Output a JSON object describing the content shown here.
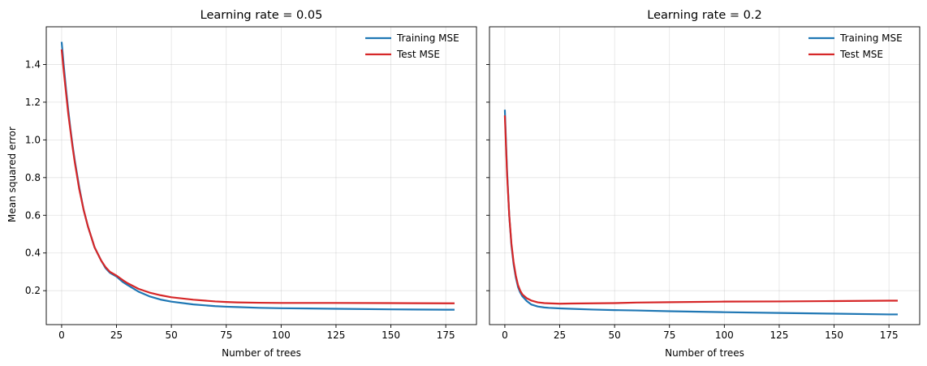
{
  "figure": {
    "shared_ylabel": "Mean squared error"
  },
  "chart_data": [
    {
      "type": "line",
      "title": "Learning rate = 0.05",
      "xlabel": "Number of trees",
      "ylabel": "Mean squared error",
      "xlim": [
        -7,
        189
      ],
      "ylim": [
        0.02,
        1.6
      ],
      "xticks": [
        0,
        25,
        50,
        75,
        100,
        125,
        150,
        175
      ],
      "yticks": [
        0.2,
        0.4,
        0.6,
        0.8,
        1.0,
        1.2,
        1.4
      ],
      "grid": true,
      "legend_position": "top-right",
      "series": [
        {
          "name": "Training MSE",
          "color": "#1f77b4",
          "x": [
            0,
            1,
            2,
            3,
            4,
            5,
            6,
            8,
            10,
            12,
            15,
            18,
            20,
            22,
            25,
            28,
            30,
            35,
            40,
            45,
            50,
            60,
            70,
            75,
            80,
            90,
            100,
            125,
            150,
            175,
            179
          ],
          "y": [
            1.52,
            1.39,
            1.27,
            1.16,
            1.06,
            0.97,
            0.89,
            0.75,
            0.63,
            0.54,
            0.43,
            0.36,
            0.32,
            0.295,
            0.275,
            0.245,
            0.23,
            0.195,
            0.17,
            0.153,
            0.142,
            0.127,
            0.118,
            0.115,
            0.113,
            0.109,
            0.107,
            0.104,
            0.101,
            0.099,
            0.099
          ]
        },
        {
          "name": "Test MSE",
          "color": "#d62728",
          "x": [
            0,
            1,
            2,
            3,
            4,
            5,
            6,
            8,
            10,
            12,
            15,
            18,
            20,
            22,
            25,
            28,
            30,
            35,
            40,
            45,
            50,
            60,
            70,
            75,
            80,
            90,
            100,
            125,
            150,
            175,
            179
          ],
          "y": [
            1.48,
            1.36,
            1.25,
            1.14,
            1.05,
            0.96,
            0.88,
            0.74,
            0.63,
            0.54,
            0.43,
            0.36,
            0.325,
            0.3,
            0.28,
            0.255,
            0.24,
            0.21,
            0.19,
            0.176,
            0.165,
            0.152,
            0.143,
            0.14,
            0.138,
            0.136,
            0.135,
            0.135,
            0.134,
            0.133,
            0.133
          ]
        }
      ]
    },
    {
      "type": "line",
      "title": "Learning rate = 0.2",
      "xlabel": "Number of trees",
      "ylabel": "",
      "xlim": [
        -7,
        189
      ],
      "ylim": [
        0.02,
        1.6
      ],
      "xticks": [
        0,
        25,
        50,
        75,
        100,
        125,
        150,
        175
      ],
      "yticks": [
        0.2,
        0.4,
        0.6,
        0.8,
        1.0,
        1.2,
        1.4
      ],
      "grid": true,
      "legend_position": "top-right",
      "series": [
        {
          "name": "Training MSE",
          "color": "#1f77b4",
          "x": [
            0,
            1,
            2,
            3,
            4,
            5,
            6,
            7,
            8,
            10,
            12,
            15,
            18,
            20,
            25,
            30,
            40,
            50,
            60,
            75,
            100,
            125,
            150,
            175,
            179
          ],
          "y": [
            1.16,
            0.84,
            0.6,
            0.44,
            0.34,
            0.27,
            0.22,
            0.19,
            0.17,
            0.145,
            0.127,
            0.116,
            0.111,
            0.109,
            0.106,
            0.104,
            0.1,
            0.097,
            0.095,
            0.091,
            0.086,
            0.082,
            0.078,
            0.074,
            0.074
          ]
        },
        {
          "name": "Test MSE",
          "color": "#d62728",
          "x": [
            0,
            1,
            2,
            3,
            4,
            5,
            6,
            7,
            8,
            10,
            12,
            15,
            18,
            20,
            25,
            30,
            40,
            50,
            60,
            75,
            100,
            125,
            150,
            175,
            179
          ],
          "y": [
            1.13,
            0.82,
            0.6,
            0.45,
            0.35,
            0.28,
            0.23,
            0.2,
            0.18,
            0.16,
            0.148,
            0.138,
            0.134,
            0.133,
            0.131,
            0.132,
            0.133,
            0.134,
            0.137,
            0.139,
            0.142,
            0.143,
            0.145,
            0.147,
            0.147
          ]
        }
      ]
    }
  ]
}
